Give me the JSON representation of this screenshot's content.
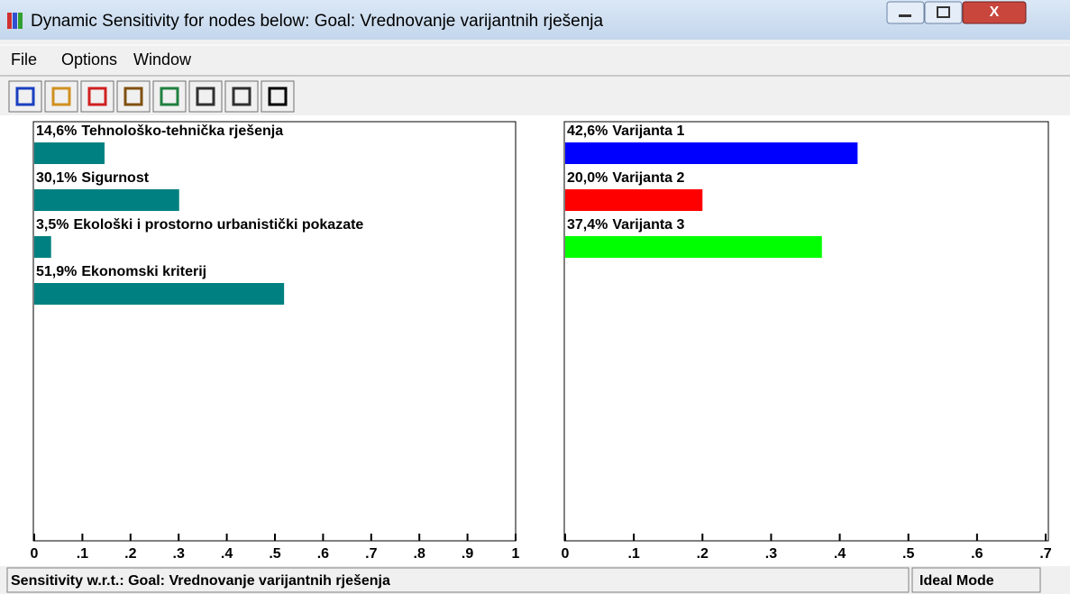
{
  "window": {
    "title": "Dynamic Sensitivity for nodes below: Goal: Vrednovanje varijantnih rješenja",
    "menu": [
      "File",
      "Options",
      "Window"
    ]
  },
  "status": {
    "text": "Sensitivity w.r.t.: Goal: Vrednovanje varijantnih rješenja",
    "mode": "Ideal Mode"
  },
  "chart_data": [
    {
      "type": "bar",
      "orientation": "horizontal",
      "categories": [
        "Tehnološko-tehnička rješenja",
        "Sigurnost",
        "Ekološki i prostorno urbanistički pokazate",
        "Ekonomski kriterij"
      ],
      "values": [
        0.146,
        0.301,
        0.035,
        0.519
      ],
      "value_labels": [
        "14,6%",
        "30,1%",
        "3,5%",
        "51,9%"
      ],
      "color": "#008080",
      "xlim": [
        0,
        1
      ],
      "xticks": [
        0,
        {
          "value": 0.1,
          "label": ".1"
        },
        {
          "value": 0.2,
          "label": ".2"
        },
        {
          "value": 0.3,
          "label": ".3"
        },
        {
          "value": 0.4,
          "label": ".4"
        },
        {
          "value": 0.5,
          "label": ".5"
        },
        {
          "value": 0.6,
          "label": ".6"
        },
        {
          "value": 0.7,
          "label": ".7"
        },
        {
          "value": 0.8,
          "label": ".8"
        },
        {
          "value": 0.9,
          "label": ".9"
        },
        1
      ]
    },
    {
      "type": "bar",
      "orientation": "horizontal",
      "categories": [
        "Varijanta 1",
        "Varijanta 2",
        "Varijanta 3"
      ],
      "values": [
        0.426,
        0.2,
        0.374
      ],
      "value_labels": [
        "42,6%",
        "20,0%",
        "37,4%"
      ],
      "colors": [
        "#0000ff",
        "#ff0000",
        "#00ff00"
      ],
      "xlim": [
        0,
        0.7
      ],
      "xticks": [
        0,
        {
          "value": 0.1,
          "label": ".1"
        },
        {
          "value": 0.2,
          "label": ".2"
        },
        {
          "value": 0.3,
          "label": ".3"
        },
        {
          "value": 0.4,
          "label": ".4"
        },
        {
          "value": 0.5,
          "label": ".5"
        },
        {
          "value": 0.6,
          "label": ".6"
        },
        {
          "value": 0.7,
          "label": ".7"
        }
      ]
    }
  ]
}
